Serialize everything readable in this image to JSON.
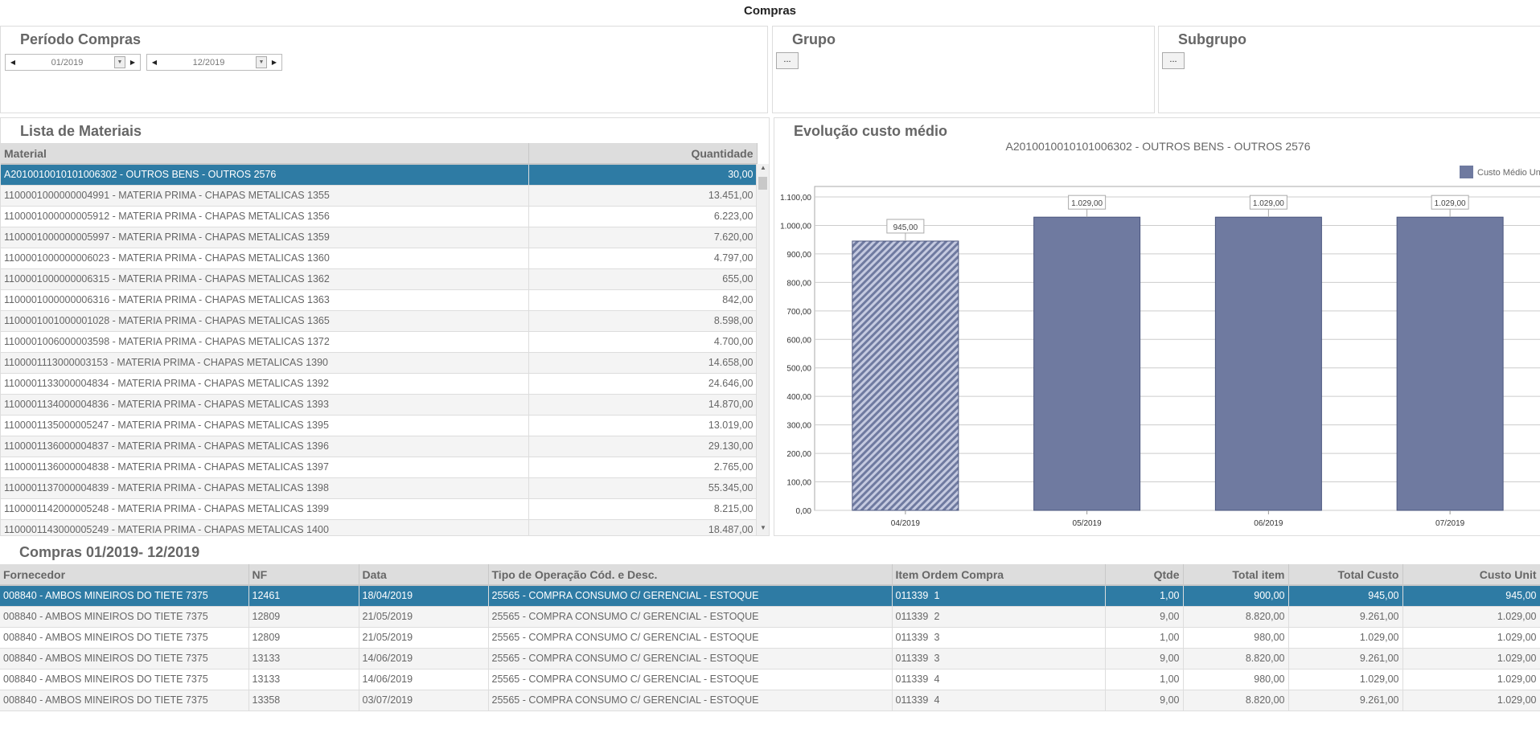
{
  "title": "Compras",
  "periodo": {
    "title": "Período Compras",
    "from": "01/2019",
    "to": "12/2019"
  },
  "grupo": {
    "title": "Grupo",
    "button": "..."
  },
  "subgrupo": {
    "title": "Subgrupo",
    "button": "..."
  },
  "lista": {
    "title": "Lista de Materiais",
    "headers": [
      "Material",
      "Quantidade"
    ],
    "rows": [
      [
        "A2010010010101006302 - OUTROS BENS - OUTROS 2576",
        "30,00"
      ],
      [
        "1100001000000004991 - MATERIA PRIMA - CHAPAS METALICAS 1355",
        "13.451,00"
      ],
      [
        "1100001000000005912 - MATERIA PRIMA - CHAPAS METALICAS 1356",
        "6.223,00"
      ],
      [
        "1100001000000005997 - MATERIA PRIMA - CHAPAS METALICAS 1359",
        "7.620,00"
      ],
      [
        "1100001000000006023 - MATERIA PRIMA - CHAPAS METALICAS 1360",
        "4.797,00"
      ],
      [
        "1100001000000006315 - MATERIA PRIMA - CHAPAS METALICAS 1362",
        "655,00"
      ],
      [
        "1100001000000006316 - MATERIA PRIMA - CHAPAS METALICAS 1363",
        "842,00"
      ],
      [
        "1100001001000001028 - MATERIA PRIMA - CHAPAS METALICAS 1365",
        "8.598,00"
      ],
      [
        "1100001006000003598 - MATERIA PRIMA - CHAPAS METALICAS 1372",
        "4.700,00"
      ],
      [
        "1100001113000003153 - MATERIA PRIMA - CHAPAS METALICAS 1390",
        "14.658,00"
      ],
      [
        "1100001133000004834 - MATERIA PRIMA - CHAPAS METALICAS 1392",
        "24.646,00"
      ],
      [
        "1100001134000004836 - MATERIA PRIMA - CHAPAS METALICAS 1393",
        "14.870,00"
      ],
      [
        "1100001135000005247 - MATERIA PRIMA - CHAPAS METALICAS 1395",
        "13.019,00"
      ],
      [
        "1100001136000004837 - MATERIA PRIMA - CHAPAS METALICAS 1396",
        "29.130,00"
      ],
      [
        "1100001136000004838 - MATERIA PRIMA - CHAPAS METALICAS 1397",
        "2.765,00"
      ],
      [
        "1100001137000004839 - MATERIA PRIMA - CHAPAS METALICAS 1398",
        "55.345,00"
      ],
      [
        "1100001142000005248 - MATERIA PRIMA - CHAPAS METALICAS 1399",
        "8.215,00"
      ],
      [
        "1100001143000005249 - MATERIA PRIMA - CHAPAS METALICAS 1400",
        "18.487,00"
      ]
    ]
  },
  "chart_panel": {
    "title": "Evolução custo médio"
  },
  "chart_data": {
    "type": "bar",
    "title": "A2010010010101006302 - OUTROS BENS - OUTROS 2576",
    "categories": [
      "04/2019",
      "05/2019",
      "06/2019",
      "07/2019"
    ],
    "series": [
      {
        "name": "Custo Médio Unit",
        "values": [
          945,
          1029,
          1029,
          1029
        ],
        "labels": [
          "945,00",
          "1.029,00",
          "1.029,00",
          "1.029,00"
        ]
      }
    ],
    "ylim": [
      0,
      1100
    ],
    "yticks": [
      "0,00",
      "100,00",
      "200,00",
      "300,00",
      "400,00",
      "500,00",
      "600,00",
      "700,00",
      "800,00",
      "900,00",
      "1.000,00",
      "1.100,00"
    ],
    "legend": "top-right",
    "grid": true,
    "color": "#6f7aa0"
  },
  "compras": {
    "title": "Compras 01/2019- 12/2019",
    "headers": [
      "Fornecedor",
      "NF",
      "Data",
      "Tipo de Operação Cód. e Desc.",
      "Item Ordem Compra",
      "Qtde",
      "Total item",
      "Total Custo",
      "Custo Unit"
    ],
    "rows": [
      [
        "008840 - AMBOS MINEIROS DO TIETE 7375",
        "12461",
        "18/04/2019",
        "25565 - COMPRA CONSUMO C/ GERENCIAL - ESTOQUE",
        "011339",
        "1",
        "1,00",
        "900,00",
        "945,00",
        "945,00"
      ],
      [
        "008840 - AMBOS MINEIROS DO TIETE 7375",
        "12809",
        "21/05/2019",
        "25565 - COMPRA CONSUMO C/ GERENCIAL - ESTOQUE",
        "011339",
        "2",
        "9,00",
        "8.820,00",
        "9.261,00",
        "1.029,00"
      ],
      [
        "008840 - AMBOS MINEIROS DO TIETE 7375",
        "12809",
        "21/05/2019",
        "25565 - COMPRA CONSUMO C/ GERENCIAL - ESTOQUE",
        "011339",
        "3",
        "1,00",
        "980,00",
        "1.029,00",
        "1.029,00"
      ],
      [
        "008840 - AMBOS MINEIROS DO TIETE 7375",
        "13133",
        "14/06/2019",
        "25565 - COMPRA CONSUMO C/ GERENCIAL - ESTOQUE",
        "011339",
        "3",
        "9,00",
        "8.820,00",
        "9.261,00",
        "1.029,00"
      ],
      [
        "008840 - AMBOS MINEIROS DO TIETE 7375",
        "13133",
        "14/06/2019",
        "25565 - COMPRA CONSUMO C/ GERENCIAL - ESTOQUE",
        "011339",
        "4",
        "1,00",
        "980,00",
        "1.029,00",
        "1.029,00"
      ],
      [
        "008840 - AMBOS MINEIROS DO TIETE 7375",
        "13358",
        "03/07/2019",
        "25565 - COMPRA CONSUMO C/ GERENCIAL - ESTOQUE",
        "011339",
        "4",
        "9,00",
        "8.820,00",
        "9.261,00",
        "1.029,00"
      ]
    ]
  }
}
